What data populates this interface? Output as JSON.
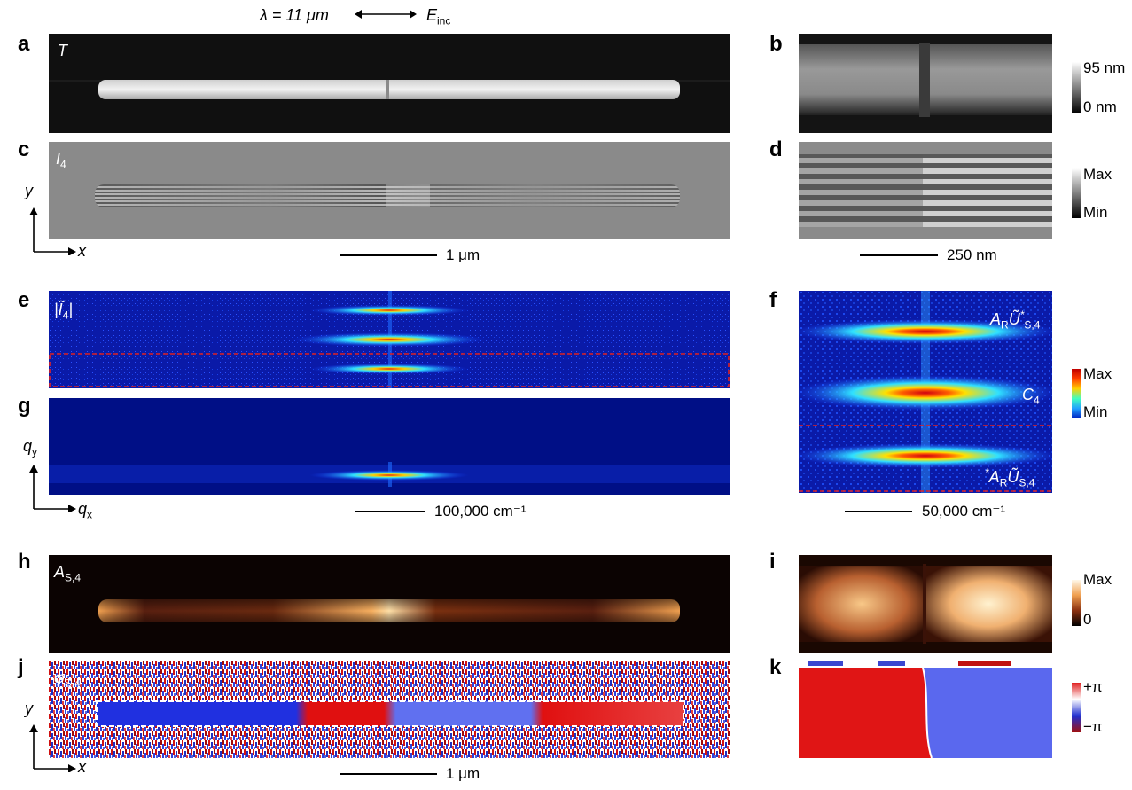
{
  "header": {
    "lambda": "λ = 11 μm",
    "e_inc": "E",
    "e_inc_sub": "inc"
  },
  "panels": {
    "a": {
      "label": "a",
      "inset": "T"
    },
    "b": {
      "label": "b"
    },
    "c": {
      "label": "c",
      "inset": "I",
      "inset_sub": "4"
    },
    "d": {
      "label": "d"
    },
    "e": {
      "label": "e",
      "inset": "|Ĩ",
      "inset_sub": "4",
      "inset_tail": "|"
    },
    "f": {
      "label": "f",
      "top": "A",
      "top_sub": "R",
      "top_mid": "Ũ",
      "top_sup": "*",
      "top_sub2": "S,4",
      "mid": "C",
      "mid_sub": "4",
      "bot_sup": "*",
      "bot": "A",
      "bot_sub": "R",
      "bot_mid": "Ũ",
      "bot_sub2": "S,4"
    },
    "g": {
      "label": "g"
    },
    "h": {
      "label": "h",
      "inset": "A",
      "inset_sub": "S,4"
    },
    "i": {
      "label": "i"
    },
    "j": {
      "label": "j",
      "inset": "φ",
      "inset_sub": "S,4"
    },
    "k": {
      "label": "k"
    }
  },
  "axes": {
    "y1": "y",
    "x1": "x",
    "qy": "q",
    "qy_sub": "y",
    "qx": "q",
    "qx_sub": "x",
    "y2": "y",
    "x2": "x"
  },
  "scalebars": {
    "c": "1 μm",
    "d": "250 nm",
    "g": "100,000 cm⁻¹",
    "f": "50,000 cm⁻¹",
    "j": "1 μm"
  },
  "colorbars": {
    "b": {
      "max": "95 nm",
      "min": "0 nm"
    },
    "d": {
      "max": "Max",
      "min": "Min"
    },
    "f": {
      "max": "Max",
      "min": "Min"
    },
    "i": {
      "max": "Max",
      "min": "0"
    },
    "k": {
      "max": "+π",
      "min": "−π"
    }
  },
  "colors": {
    "jet_bg": "#0a1aa8",
    "phase_red": "#e01010",
    "phase_blue": "#3a4de0",
    "copper": "#f0a050"
  }
}
